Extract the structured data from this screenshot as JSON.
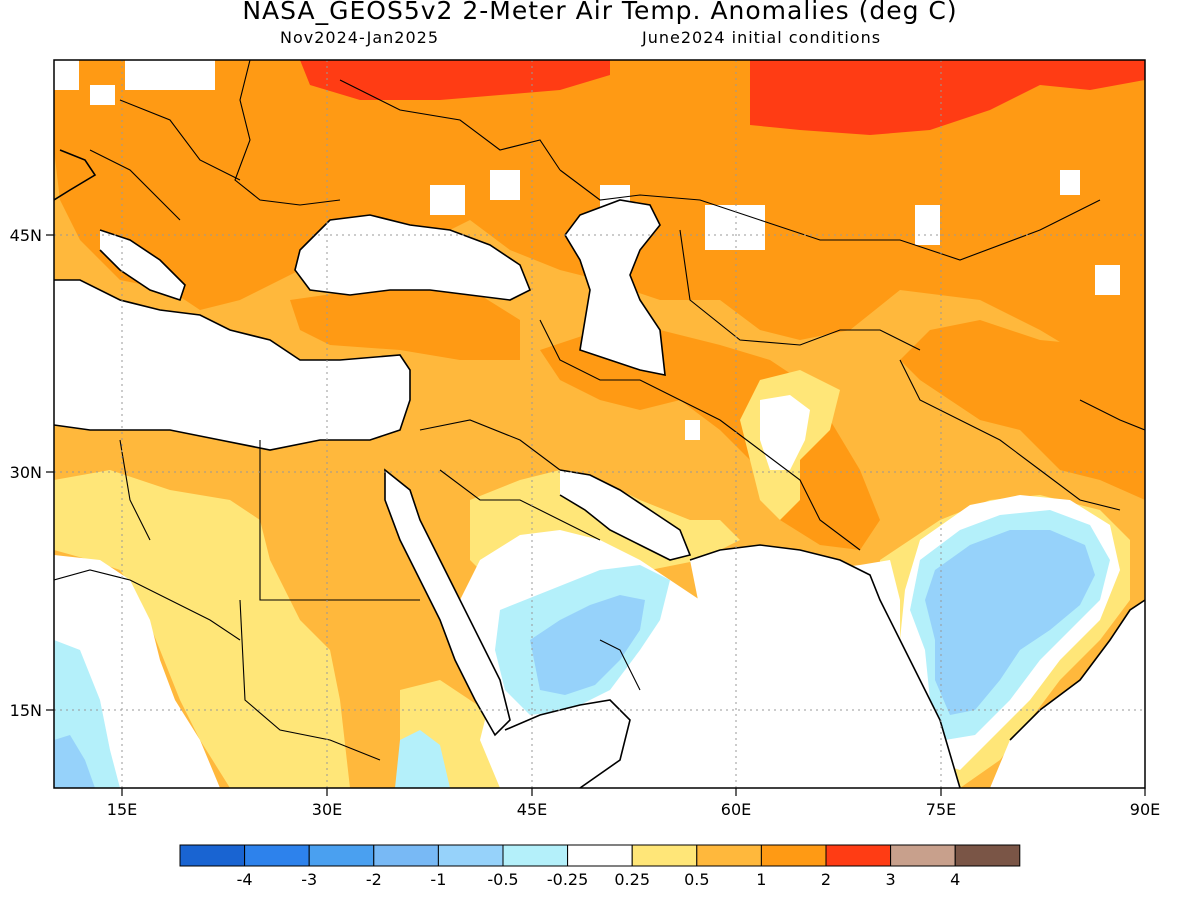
{
  "header": {
    "title": "NASA_GEOS5v2 2-Meter Air Temp. Anomalies (deg C)",
    "period": "Nov2024-Jan2025",
    "init": "June2024 initial conditions"
  },
  "map": {
    "lon_range": [
      10,
      90
    ],
    "lat_range": [
      8,
      62
    ],
    "lon_ticks": [
      "15E",
      "30E",
      "45E",
      "60E",
      "75E",
      "90E"
    ],
    "lat_ticks": [
      "45N",
      "30N",
      "15N"
    ],
    "gridlines": "dotted"
  },
  "colorbar": {
    "labels": [
      "-4",
      "-3",
      "-2",
      "-1",
      "-0.5",
      "-0.25",
      "0.25",
      "0.5",
      "1",
      "2",
      "3",
      "4"
    ],
    "colors": [
      "#1964d2",
      "#2d82ec",
      "#4aa0f0",
      "#78b9f5",
      "#96d2fa",
      "#b4f0fa",
      "#ffffff",
      "#ffe678",
      "#ffb83c",
      "#ff9a14",
      "#ff3c14",
      "#c8a08c",
      "#7a5546"
    ]
  }
}
